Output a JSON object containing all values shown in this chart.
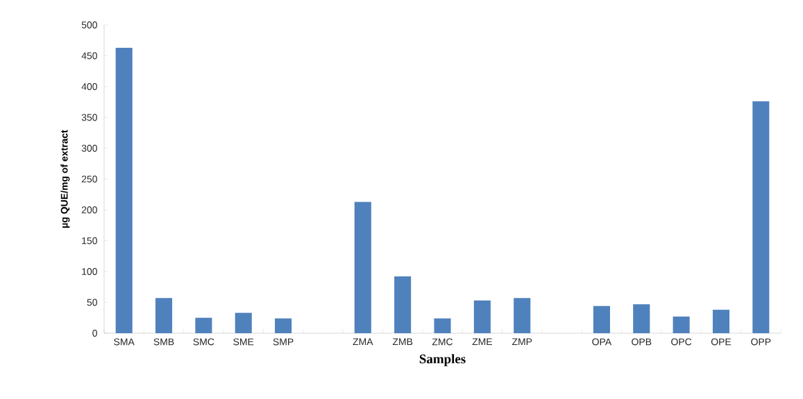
{
  "chart_data": {
    "type": "bar",
    "xlabel": "Samples",
    "ylabel": "µg QUE/mg of extract",
    "categories": [
      "SMA",
      "SMB",
      "SMC",
      "SME",
      "SMP",
      null,
      "ZMA",
      "ZMB",
      "ZMC",
      "ZME",
      "ZMP",
      null,
      "OPA",
      "OPB",
      "OPC",
      "OPE",
      "OPP"
    ],
    "values": [
      463,
      57,
      25,
      33,
      24,
      null,
      213,
      92,
      24,
      53,
      57,
      null,
      44,
      47,
      27,
      38,
      376
    ],
    "color": "#4f81bd",
    "ylim": [
      0,
      500
    ],
    "yticks": [
      0,
      50,
      100,
      150,
      200,
      250,
      300,
      350,
      400,
      450,
      500
    ],
    "grid": false
  }
}
